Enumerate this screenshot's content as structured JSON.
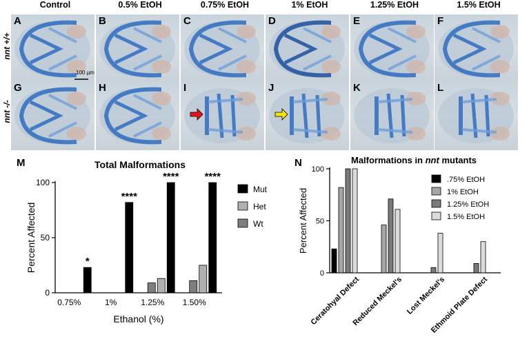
{
  "columns": [
    "Control",
    "0.5% EtOH",
    "0.75% EtOH",
    "1% EtOH",
    "1.25% EtOH",
    "1.5% EtOH"
  ],
  "rows": [
    "nnt +/+",
    "nnt -/-"
  ],
  "panels_top": [
    "A",
    "B",
    "C",
    "D",
    "E",
    "F"
  ],
  "panels_bottom": [
    "G",
    "H",
    "I",
    "J",
    "K",
    "L"
  ],
  "scale_bar": "100 µm",
  "arrow_colors": {
    "I": "#e8141a",
    "J": "#f5e60a"
  },
  "figure_m": "M",
  "figure_n": "N",
  "chart_data": [
    {
      "type": "bar",
      "title": "Total Malformations",
      "xlabel": "Ethanol (%)",
      "ylabel": "Percent Affected",
      "ylim": [
        0,
        100
      ],
      "yticks": [
        0,
        50,
        100
      ],
      "categories": [
        "0.75%",
        "1%",
        "1.25%",
        "1.50%"
      ],
      "series": [
        {
          "name": "Wt",
          "color": "#7f7f7f",
          "values": [
            0,
            0,
            9,
            11
          ]
        },
        {
          "name": "Het",
          "color": "#b0b0b0",
          "values": [
            0,
            0,
            13,
            25
          ]
        },
        {
          "name": "Mut",
          "color": "#000000",
          "values": [
            23,
            82,
            100,
            100
          ]
        }
      ],
      "legend_order": [
        "Mut",
        "Het",
        "Wt"
      ],
      "significance": [
        "*",
        "****",
        "****",
        "****"
      ]
    },
    {
      "type": "bar",
      "title": "Malformations in nnt mutants",
      "title_parts": [
        "Malformations in ",
        "nnt",
        " mutants"
      ],
      "ylabel": "Percent Affected",
      "ylim": [
        0,
        100
      ],
      "yticks": [
        0,
        50,
        100
      ],
      "categories": [
        "Ceratohyal Defect",
        "Reduced Meckel's",
        "Lost Meckel's",
        "Ethmoid Plate Defect"
      ],
      "series": [
        {
          "name": ".75% EtOH",
          "color": "#000000",
          "values": [
            23,
            0,
            0,
            0
          ]
        },
        {
          "name": "1% EtOH",
          "color": "#a6a6a6",
          "values": [
            82,
            46,
            0,
            0
          ]
        },
        {
          "name": "1.25% EtOH",
          "color": "#7a7a7a",
          "values": [
            100,
            71,
            5,
            9
          ]
        },
        {
          "name": "1.5% EtOH",
          "color": "#dcdcdc",
          "values": [
            100,
            61,
            38,
            30
          ]
        }
      ]
    }
  ]
}
